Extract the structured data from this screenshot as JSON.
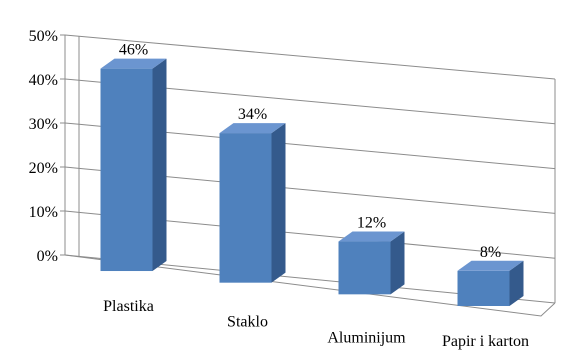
{
  "chart_data": {
    "type": "bar",
    "categories": [
      "Plastika",
      "Staklo",
      "Aluminijum",
      "Papir i karton"
    ],
    "values": [
      46,
      34,
      12,
      8
    ],
    "data_labels": [
      "46%",
      "34%",
      "12%",
      "8%"
    ],
    "y_ticks": [
      "0%",
      "10%",
      "20%",
      "30%",
      "40%",
      "50%"
    ],
    "ylim": [
      0,
      50
    ],
    "grid": true,
    "legend": "none",
    "style": "3d-column",
    "colors": {
      "front": "#4f81bd",
      "side": "#345a8c",
      "top": "#6b95d0"
    }
  }
}
